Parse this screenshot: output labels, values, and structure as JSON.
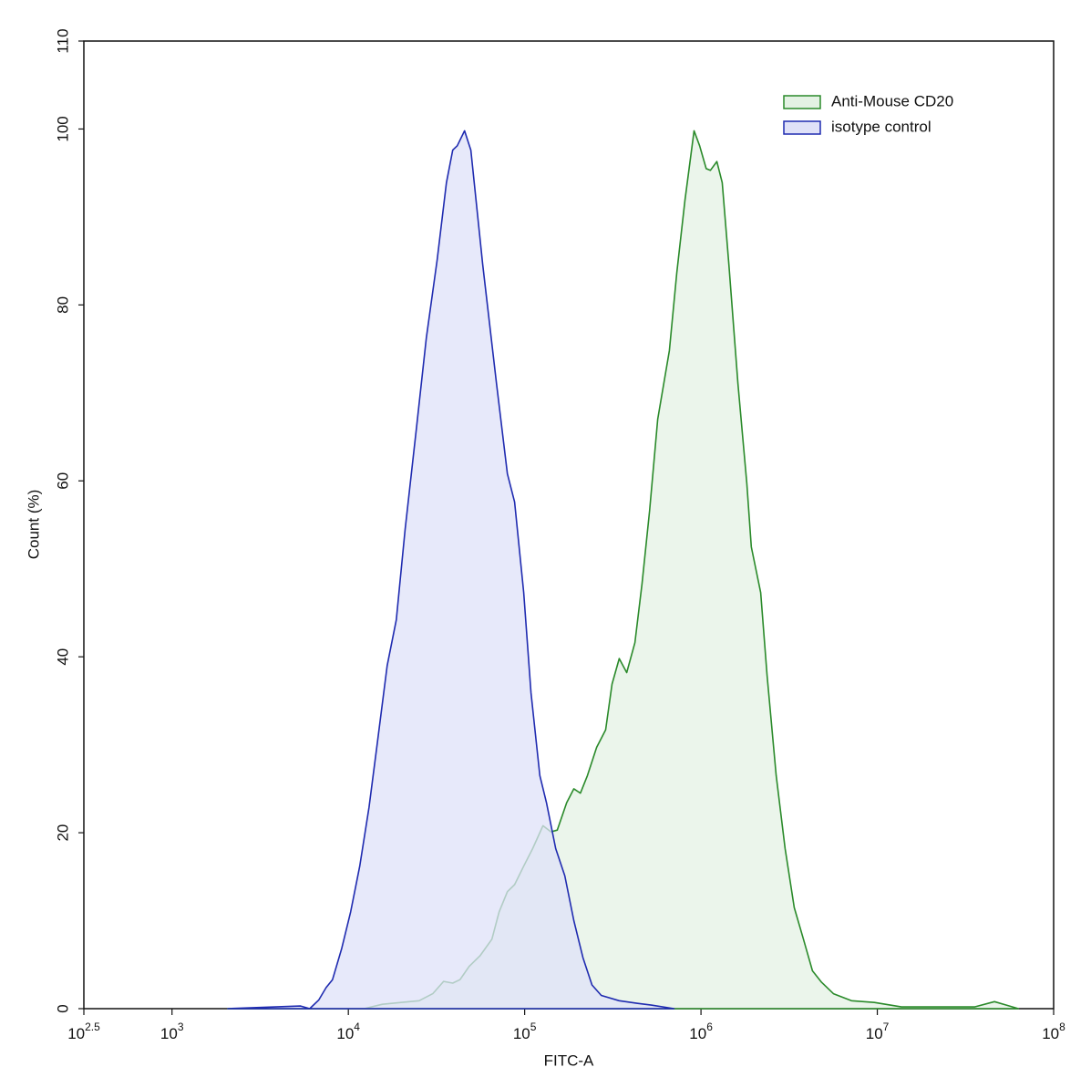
{
  "chart_data": {
    "type": "area",
    "xlabel": "FITC-A",
    "ylabel": "Count  (%)",
    "xscale": "log",
    "xlim": [
      316.228,
      100000000
    ],
    "xticks": [
      {
        "value": 316.228,
        "label": "10",
        "exponent": "2.5"
      },
      {
        "value": 1000,
        "label": "10",
        "exponent": "3"
      },
      {
        "value": 10000,
        "label": "10",
        "exponent": "4"
      },
      {
        "value": 100000,
        "label": "10",
        "exponent": "5"
      },
      {
        "value": 1000000,
        "label": "10",
        "exponent": "6"
      },
      {
        "value": 10000000,
        "label": "10",
        "exponent": "7"
      },
      {
        "value": 100000000,
        "label": "10",
        "exponent": "8"
      }
    ],
    "ylim": [
      0,
      110
    ],
    "yticks": [
      0,
      20,
      40,
      60,
      80,
      100,
      110
    ],
    "legend": "upper right",
    "series": [
      {
        "name": "Anti-Mouse CD20",
        "color": "#2a8a2a",
        "fill": "#e4f2e4",
        "x": [
          2070,
          12300,
          15600,
          19900,
          25200,
          30100,
          34700,
          39100,
          43000,
          48400,
          55800,
          65200,
          71600,
          79800,
          87700,
          98800,
          111000,
          127000,
          141000,
          153000,
          173000,
          190000,
          207000,
          227000,
          256000,
          288000,
          313000,
          344000,
          379000,
          422000,
          463000,
          511000,
          568000,
          662000,
          729000,
          811000,
          914000,
          982000,
          1070000,
          1130000,
          1230000,
          1320000,
          1440000,
          1620000,
          1820000,
          1930000,
          2180000,
          2370000,
          2670000,
          3000000,
          3380000,
          3810000,
          4290000,
          4830000,
          5640000,
          7140000,
          9620000,
          13700000,
          22100000,
          35600000,
          46200000,
          54000000,
          63100000
        ],
        "values": [
          0,
          0,
          0.5,
          0.7,
          0.9,
          1.7,
          3.1,
          2.9,
          3.3,
          4.8,
          6,
          7.9,
          11,
          13.3,
          14.1,
          16.2,
          18.2,
          20.8,
          20.1,
          20.3,
          23.4,
          25,
          24.5,
          26.5,
          29.7,
          31.7,
          36.9,
          39.8,
          38.2,
          41.6,
          48.3,
          56.6,
          67,
          74.8,
          83.6,
          91.9,
          99.8,
          98.1,
          95.5,
          95.3,
          96.3,
          93.9,
          84.6,
          71.1,
          59.7,
          52.5,
          47.3,
          37.9,
          26.5,
          18.2,
          11.5,
          7.9,
          4.3,
          3.0,
          1.7,
          0.9,
          0.7,
          0.2,
          0.2,
          0.2,
          0.8,
          0.4,
          0
        ]
      },
      {
        "name": "isotype control",
        "color": "#1f2bb0",
        "fill": "#dfe1f8",
        "x": [
          2070,
          5360,
          6040,
          6800,
          7480,
          8130,
          9160,
          10300,
          11600,
          13100,
          14700,
          16600,
          18700,
          21000,
          24300,
          27700,
          31900,
          36000,
          39100,
          41500,
          45600,
          49500,
          57800,
          69200,
          79800,
          87700,
          98800,
          108600,
          122000,
          133000,
          150000,
          169000,
          190000,
          214000,
          241000,
          272000,
          344000,
          437000,
          522000,
          703000
        ],
        "values": [
          0,
          0.3,
          0,
          1.0,
          2.4,
          3.3,
          6.8,
          11,
          16.2,
          22.9,
          30.7,
          39,
          44.2,
          54.5,
          65.9,
          76.3,
          85.1,
          93.9,
          97.6,
          98.1,
          99.8,
          97.6,
          84.6,
          71.1,
          60.8,
          57.6,
          47.3,
          35.9,
          26.5,
          23.4,
          18.2,
          15.1,
          10,
          5.8,
          2.7,
          1.5,
          0.9,
          0.6,
          0.4,
          0
        ]
      }
    ]
  }
}
